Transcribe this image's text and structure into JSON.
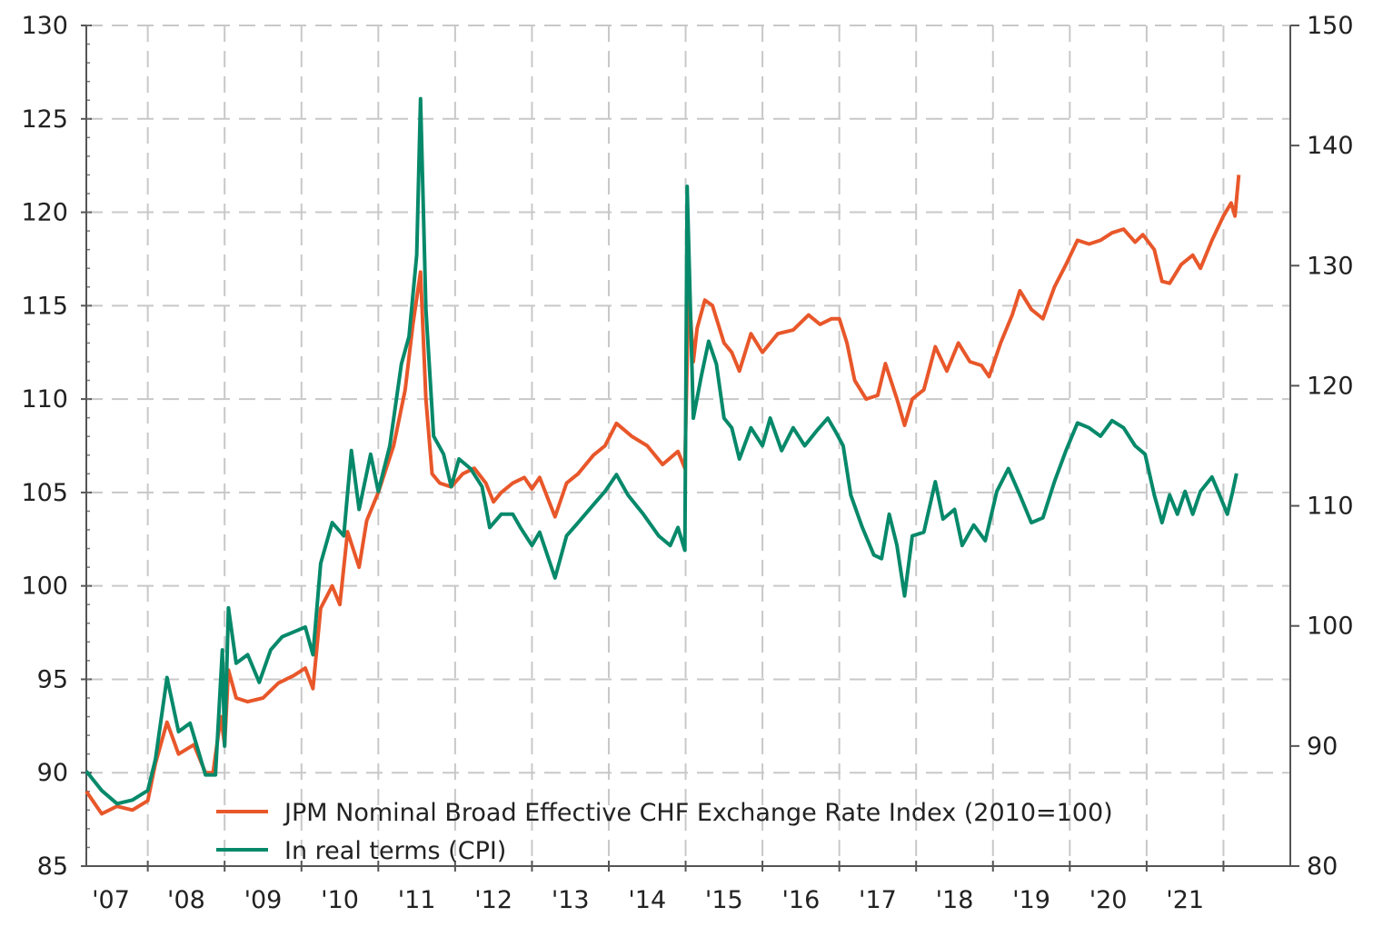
{
  "chart_data": {
    "type": "line",
    "title": "",
    "xlabel": "",
    "ylabel": "",
    "xlim": [
      2007.2,
      2022.87
    ],
    "ylim_left": [
      85,
      130
    ],
    "ylim_right": [
      80,
      150
    ],
    "grid": true,
    "legend_position": "bottom-center",
    "x_tick_labels": [
      {
        "year": 2007,
        "label": "'07"
      },
      {
        "year": 2008,
        "label": "'08"
      },
      {
        "year": 2009,
        "label": "'09"
      },
      {
        "year": 2010,
        "label": "'10"
      },
      {
        "year": 2011,
        "label": "'11"
      },
      {
        "year": 2012,
        "label": "'12"
      },
      {
        "year": 2013,
        "label": "'13"
      },
      {
        "year": 2014,
        "label": "'14"
      },
      {
        "year": 2015,
        "label": "'15"
      },
      {
        "year": 2016,
        "label": "'16"
      },
      {
        "year": 2017,
        "label": "'17"
      },
      {
        "year": 2018,
        "label": "'18"
      },
      {
        "year": 2019,
        "label": "'19"
      },
      {
        "year": 2020,
        "label": "'20"
      },
      {
        "year": 2021,
        "label": "'21"
      }
    ],
    "left_ticks": [
      "130",
      "125",
      "120",
      "115",
      "110",
      "105",
      "100",
      "95",
      "90",
      "85"
    ],
    "right_ticks": [
      "150",
      "140",
      "130",
      "120",
      "110",
      "100",
      "90",
      "80"
    ],
    "series": [
      {
        "name": "JPM Nominal Broad Effective CHF Exchange Rate Index (2010=100)",
        "axis": "left",
        "color": "#e8572a",
        "points": [
          [
            2007.2,
            89
          ],
          [
            2007.4,
            87.8
          ],
          [
            2007.6,
            88.2
          ],
          [
            2007.8,
            88
          ],
          [
            2008.0,
            88.5
          ],
          [
            2008.1,
            90.5
          ],
          [
            2008.25,
            92.7
          ],
          [
            2008.4,
            91
          ],
          [
            2008.6,
            91.5
          ],
          [
            2008.75,
            90
          ],
          [
            2008.85,
            90
          ],
          [
            2008.95,
            93
          ],
          [
            2009.0,
            91.5
          ],
          [
            2009.05,
            95.5
          ],
          [
            2009.15,
            94
          ],
          [
            2009.3,
            93.8
          ],
          [
            2009.5,
            94
          ],
          [
            2009.7,
            94.8
          ],
          [
            2009.9,
            95.2
          ],
          [
            2010.05,
            95.6
          ],
          [
            2010.15,
            94.5
          ],
          [
            2010.25,
            98.8
          ],
          [
            2010.4,
            100
          ],
          [
            2010.5,
            99
          ],
          [
            2010.6,
            102.9
          ],
          [
            2010.75,
            101
          ],
          [
            2010.85,
            103.5
          ],
          [
            2011.0,
            105
          ],
          [
            2011.2,
            107.5
          ],
          [
            2011.35,
            110.5
          ],
          [
            2011.45,
            114
          ],
          [
            2011.55,
            116.8
          ],
          [
            2011.62,
            110
          ],
          [
            2011.7,
            106
          ],
          [
            2011.8,
            105.5
          ],
          [
            2011.95,
            105.3
          ],
          [
            2012.1,
            106
          ],
          [
            2012.25,
            106.3
          ],
          [
            2012.4,
            105.5
          ],
          [
            2012.5,
            104.5
          ],
          [
            2012.6,
            105
          ],
          [
            2012.75,
            105.5
          ],
          [
            2012.9,
            105.8
          ],
          [
            2013.0,
            105.2
          ],
          [
            2013.1,
            105.8
          ],
          [
            2013.3,
            103.7
          ],
          [
            2013.45,
            105.5
          ],
          [
            2013.6,
            106
          ],
          [
            2013.8,
            107
          ],
          [
            2013.95,
            107.5
          ],
          [
            2014.1,
            108.7
          ],
          [
            2014.3,
            108
          ],
          [
            2014.5,
            107.5
          ],
          [
            2014.7,
            106.5
          ],
          [
            2014.9,
            107.2
          ],
          [
            2014.99,
            106.3
          ],
          [
            2015.04,
            116
          ],
          [
            2015.1,
            112
          ],
          [
            2015.15,
            113.8
          ],
          [
            2015.25,
            115.3
          ],
          [
            2015.35,
            115
          ],
          [
            2015.5,
            113
          ],
          [
            2015.6,
            112.5
          ],
          [
            2015.7,
            111.5
          ],
          [
            2015.85,
            113.5
          ],
          [
            2016.0,
            112.5
          ],
          [
            2016.2,
            113.5
          ],
          [
            2016.4,
            113.7
          ],
          [
            2016.6,
            114.5
          ],
          [
            2016.75,
            114
          ],
          [
            2016.9,
            114.3
          ],
          [
            2017.0,
            114.3
          ],
          [
            2017.1,
            113
          ],
          [
            2017.2,
            111
          ],
          [
            2017.35,
            110
          ],
          [
            2017.5,
            110.2
          ],
          [
            2017.6,
            111.9
          ],
          [
            2017.75,
            110
          ],
          [
            2017.85,
            108.6
          ],
          [
            2017.95,
            110
          ],
          [
            2018.1,
            110.5
          ],
          [
            2018.25,
            112.8
          ],
          [
            2018.4,
            111.5
          ],
          [
            2018.55,
            113
          ],
          [
            2018.7,
            112
          ],
          [
            2018.85,
            111.8
          ],
          [
            2018.95,
            111.2
          ],
          [
            2019.1,
            113
          ],
          [
            2019.25,
            114.5
          ],
          [
            2019.35,
            115.8
          ],
          [
            2019.5,
            114.8
          ],
          [
            2019.65,
            114.3
          ],
          [
            2019.8,
            116
          ],
          [
            2019.95,
            117.2
          ],
          [
            2020.1,
            118.5
          ],
          [
            2020.25,
            118.3
          ],
          [
            2020.4,
            118.5
          ],
          [
            2020.55,
            118.9
          ],
          [
            2020.7,
            119.1
          ],
          [
            2020.85,
            118.4
          ],
          [
            2020.95,
            118.8
          ],
          [
            2021.1,
            118
          ],
          [
            2021.2,
            116.3
          ],
          [
            2021.3,
            116.2
          ],
          [
            2021.45,
            117.2
          ],
          [
            2021.6,
            117.7
          ],
          [
            2021.7,
            117.0
          ],
          [
            2021.85,
            118.5
          ],
          [
            2022.0,
            119.8
          ],
          [
            2022.1,
            120.5
          ],
          [
            2022.15,
            119.8
          ],
          [
            2022.2,
            122
          ]
        ]
      },
      {
        "name": "In real terms (CPI)",
        "axis": "right",
        "color": "#06896a",
        "points": [
          [
            2007.2,
            87.9
          ],
          [
            2007.4,
            86.3
          ],
          [
            2007.6,
            85.2
          ],
          [
            2007.8,
            85.5
          ],
          [
            2008.0,
            86.3
          ],
          [
            2008.1,
            88.9
          ],
          [
            2008.25,
            95.7
          ],
          [
            2008.4,
            91.2
          ],
          [
            2008.55,
            91.9
          ],
          [
            2008.75,
            87.6
          ],
          [
            2008.88,
            87.6
          ],
          [
            2008.97,
            98.0
          ],
          [
            2009.0,
            90
          ],
          [
            2009.05,
            101.5
          ],
          [
            2009.15,
            96.9
          ],
          [
            2009.3,
            97.6
          ],
          [
            2009.45,
            95.3
          ],
          [
            2009.6,
            98
          ],
          [
            2009.75,
            99.1
          ],
          [
            2009.9,
            99.5
          ],
          [
            2010.05,
            99.9
          ],
          [
            2010.15,
            97.6
          ],
          [
            2010.25,
            105.2
          ],
          [
            2010.4,
            108.6
          ],
          [
            2010.55,
            107.5
          ],
          [
            2010.65,
            114.6
          ],
          [
            2010.75,
            109.7
          ],
          [
            2010.9,
            114.3
          ],
          [
            2011.0,
            111.2
          ],
          [
            2011.15,
            115
          ],
          [
            2011.3,
            121.8
          ],
          [
            2011.4,
            124.1
          ],
          [
            2011.5,
            130.9
          ],
          [
            2011.55,
            143.9
          ],
          [
            2011.62,
            126.4
          ],
          [
            2011.72,
            115.8
          ],
          [
            2011.85,
            114.3
          ],
          [
            2011.95,
            111.6
          ],
          [
            2012.05,
            113.9
          ],
          [
            2012.2,
            113.1
          ],
          [
            2012.35,
            111.6
          ],
          [
            2012.45,
            108.2
          ],
          [
            2012.6,
            109.3
          ],
          [
            2012.75,
            109.3
          ],
          [
            2012.85,
            108.2
          ],
          [
            2013.0,
            106.7
          ],
          [
            2013.1,
            107.8
          ],
          [
            2013.3,
            104.0
          ],
          [
            2013.45,
            107.5
          ],
          [
            2013.6,
            108.6
          ],
          [
            2013.8,
            110.1
          ],
          [
            2013.95,
            111.2
          ],
          [
            2014.1,
            112.6
          ],
          [
            2014.25,
            110.9
          ],
          [
            2014.45,
            109.3
          ],
          [
            2014.65,
            107.5
          ],
          [
            2014.8,
            106.7
          ],
          [
            2014.9,
            108.2
          ],
          [
            2014.99,
            106.3
          ],
          [
            2015.02,
            136.6
          ],
          [
            2015.1,
            117.3
          ],
          [
            2015.2,
            120.7
          ],
          [
            2015.3,
            123.7
          ],
          [
            2015.4,
            121.8
          ],
          [
            2015.5,
            117.3
          ],
          [
            2015.6,
            116.5
          ],
          [
            2015.7,
            113.9
          ],
          [
            2015.85,
            116.5
          ],
          [
            2016.0,
            115.0
          ],
          [
            2016.1,
            117.3
          ],
          [
            2016.25,
            114.6
          ],
          [
            2016.4,
            116.5
          ],
          [
            2016.55,
            115
          ],
          [
            2016.7,
            116.2
          ],
          [
            2016.85,
            117.3
          ],
          [
            2016.95,
            116.2
          ],
          [
            2017.05,
            115
          ],
          [
            2017.15,
            110.9
          ],
          [
            2017.3,
            108.2
          ],
          [
            2017.45,
            105.9
          ],
          [
            2017.55,
            105.6
          ],
          [
            2017.65,
            109.3
          ],
          [
            2017.75,
            106.7
          ],
          [
            2017.85,
            102.5
          ],
          [
            2017.95,
            107.5
          ],
          [
            2018.1,
            107.8
          ],
          [
            2018.25,
            112
          ],
          [
            2018.35,
            108.9
          ],
          [
            2018.5,
            109.7
          ],
          [
            2018.6,
            106.7
          ],
          [
            2018.75,
            108.4
          ],
          [
            2018.9,
            107.1
          ],
          [
            2019.05,
            111.2
          ],
          [
            2019.2,
            113.1
          ],
          [
            2019.35,
            110.9
          ],
          [
            2019.5,
            108.6
          ],
          [
            2019.65,
            109.0
          ],
          [
            2019.8,
            112
          ],
          [
            2019.95,
            114.6
          ],
          [
            2020.1,
            116.9
          ],
          [
            2020.25,
            116.5
          ],
          [
            2020.4,
            115.8
          ],
          [
            2020.55,
            117.1
          ],
          [
            2020.7,
            116.5
          ],
          [
            2020.85,
            115
          ],
          [
            2020.98,
            114.3
          ],
          [
            2021.1,
            110.9
          ],
          [
            2021.2,
            108.6
          ],
          [
            2021.3,
            110.9
          ],
          [
            2021.4,
            109.3
          ],
          [
            2021.5,
            111.2
          ],
          [
            2021.6,
            109.3
          ],
          [
            2021.7,
            111.2
          ],
          [
            2021.85,
            112.4
          ],
          [
            2021.95,
            110.9
          ],
          [
            2022.05,
            109.3
          ],
          [
            2022.12,
            111.2
          ],
          [
            2022.17,
            112.7
          ]
        ]
      }
    ]
  }
}
